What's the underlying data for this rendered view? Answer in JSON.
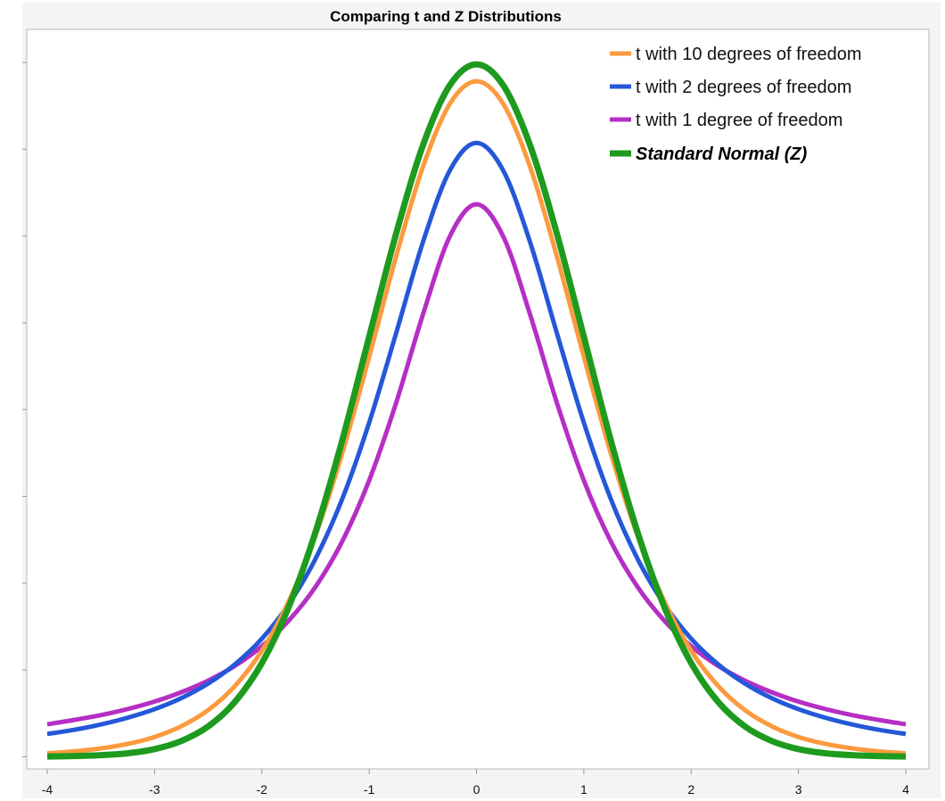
{
  "chart_data": {
    "type": "line",
    "title": "Comparing t and Z Distributions",
    "xlabel": "",
    "ylabel": "",
    "xlim": [
      -4,
      4
    ],
    "ylim": [
      -0.007,
      0.419
    ],
    "x_ticks": [
      -4,
      -3,
      -2,
      -1,
      0,
      1,
      2,
      3,
      4
    ],
    "x_tick_labels": [
      "-4",
      "-3",
      "-2",
      "-1",
      "0",
      "1",
      "2",
      "3",
      "4"
    ],
    "y_ticks": [
      0,
      0.05,
      0.1,
      0.15,
      0.2,
      0.25,
      0.3,
      0.35,
      0.4
    ],
    "grid": false,
    "legend_position": "top-right",
    "x": [
      -4,
      -3.75,
      -3.5,
      -3.25,
      -3,
      -2.75,
      -2.5,
      -2.25,
      -2,
      -1.75,
      -1.5,
      -1.25,
      -1,
      -0.75,
      -0.5,
      -0.25,
      0,
      0.25,
      0.5,
      0.75,
      1,
      1.25,
      1.5,
      1.75,
      2,
      2.25,
      2.5,
      2.75,
      3,
      3.25,
      3.5,
      3.75,
      4
    ],
    "series": [
      {
        "name": "t with 1 degree of freedom",
        "color": "#b52fc4",
        "emphasis": false,
        "values": [
          0.0187,
          0.0212,
          0.024,
          0.0275,
          0.0318,
          0.0372,
          0.0439,
          0.0524,
          0.0637,
          0.0784,
          0.0979,
          0.1242,
          0.1592,
          0.2037,
          0.2546,
          0.2996,
          0.3183,
          0.2996,
          0.2546,
          0.2037,
          0.1592,
          0.1242,
          0.0979,
          0.0784,
          0.0637,
          0.0524,
          0.0439,
          0.0372,
          0.0318,
          0.0275,
          0.024,
          0.0212,
          0.0187
        ]
      },
      {
        "name": "t with 2 degrees of freedom",
        "color": "#2458d8",
        "emphasis": false,
        "values": [
          0.0131,
          0.0155,
          0.0186,
          0.0225,
          0.0274,
          0.0338,
          0.0422,
          0.0533,
          0.068,
          0.0878,
          0.1141,
          0.1487,
          0.1925,
          0.2438,
          0.2963,
          0.3376,
          0.3536,
          0.3376,
          0.2963,
          0.2438,
          0.1925,
          0.1487,
          0.1141,
          0.0878,
          0.068,
          0.0533,
          0.0422,
          0.0338,
          0.0274,
          0.0225,
          0.0186,
          0.0155,
          0.0131
        ]
      },
      {
        "name": "t with 10 degrees of freedom",
        "color": "#fb9a3e",
        "emphasis": false,
        "values": [
          0.002,
          0.0031,
          0.0048,
          0.0074,
          0.0114,
          0.0176,
          0.0269,
          0.0409,
          0.0611,
          0.0895,
          0.1274,
          0.1751,
          0.2304,
          0.288,
          0.3397,
          0.376,
          0.3891,
          0.376,
          0.3397,
          0.288,
          0.2304,
          0.1751,
          0.1274,
          0.0895,
          0.0611,
          0.0409,
          0.0269,
          0.0176,
          0.0114,
          0.0074,
          0.0048,
          0.0031,
          0.002
        ]
      },
      {
        "name": "Standard Normal (Z)",
        "color": "#1e9a1e",
        "emphasis": true,
        "values": [
          0.0001,
          0.0004,
          0.0009,
          0.002,
          0.0044,
          0.0091,
          0.0175,
          0.0317,
          0.054,
          0.0863,
          0.1295,
          0.1826,
          0.242,
          0.3011,
          0.3521,
          0.3867,
          0.3989,
          0.3867,
          0.3521,
          0.3011,
          0.242,
          0.1826,
          0.1295,
          0.0863,
          0.054,
          0.0317,
          0.0175,
          0.0091,
          0.0044,
          0.002,
          0.0009,
          0.0004,
          0.0001
        ]
      }
    ],
    "legend_order": [
      "t with 10 degrees of freedom",
      "t with 2 degrees of freedom",
      "t with 1 degree of freedom",
      "Standard Normal (Z)"
    ]
  }
}
